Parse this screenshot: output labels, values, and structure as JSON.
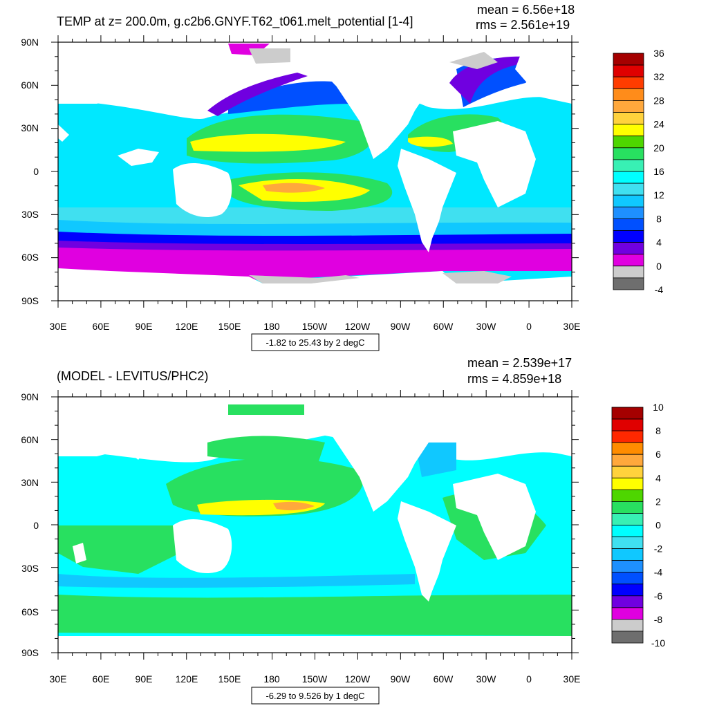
{
  "palette": {
    "ocean_top": [
      "#ffffff",
      "#e0e0ff"
    ],
    "land": "#ffffff",
    "ice": "#cccccc"
  },
  "panels": [
    {
      "id": "top",
      "title": "TEMP at z= 200.0m, g.c2b6.GNYF.T62_t061.melt_potential [1-4]",
      "mean": "mean = 6.56e+18",
      "rms": "rms = 2.561e+19",
      "range_label": "-1.82 to 25.43 by 2 degC",
      "colorbar_labels": [
        "36",
        "32",
        "28",
        "24",
        "20",
        "16",
        "12",
        "8",
        "4",
        "0",
        "-4"
      ],
      "colorbar_colors": [
        "#a50000",
        "#e00000",
        "#ff3c00",
        "#ff8c1a",
        "#ffa83c",
        "#ffd23c",
        "#ffff00",
        "#4ed600",
        "#28e060",
        "#38f0b4",
        "#00ffff",
        "#40e0f0",
        "#10c8ff",
        "#1e90ff",
        "#0050ff",
        "#0000ff",
        "#7000e0",
        "#e000e0",
        "#cccccc",
        "#6e6e6e"
      ],
      "field_colors": {
        "outer": "#e000e0",
        "south": "#7000e0",
        "mid": "#00e8ff",
        "warm": "#28e060",
        "hot": "#ffff00",
        "core": "#ffa83c",
        "cold": "#0050ff"
      }
    },
    {
      "id": "bottom",
      "title": "(MODEL - LEVITUS/PHC2)",
      "mean": "mean = 2.539e+17",
      "rms": "rms = 4.859e+18",
      "range_label": "-6.29 to 9.526 by 1 degC",
      "colorbar_labels": [
        "10",
        "8",
        "6",
        "4",
        "2",
        "0",
        "-2",
        "-4",
        "-6",
        "-8",
        "-10"
      ],
      "colorbar_colors": [
        "#a50000",
        "#e00000",
        "#ff2800",
        "#ff8c00",
        "#ffa83c",
        "#ffd23c",
        "#ffff00",
        "#4ed600",
        "#28e060",
        "#38f0b4",
        "#00ffff",
        "#40e0f0",
        "#10c8ff",
        "#1e90ff",
        "#0050ff",
        "#0000ff",
        "#7000e0",
        "#e000e0",
        "#cccccc",
        "#6e6e6e"
      ],
      "field_colors": {
        "base": "#00ffff",
        "pos": "#28e060",
        "hot": "#ffff00",
        "core": "#ffa83c",
        "neg": "#10c8ff"
      }
    }
  ],
  "axes": {
    "lat_labels": [
      "90N",
      "60N",
      "30N",
      "0",
      "30S",
      "60S",
      "90S"
    ],
    "lon_labels": [
      "30E",
      "60E",
      "90E",
      "120E",
      "150E",
      "180",
      "150W",
      "120W",
      "90W",
      "60W",
      "30W",
      "0",
      "30E"
    ]
  }
}
